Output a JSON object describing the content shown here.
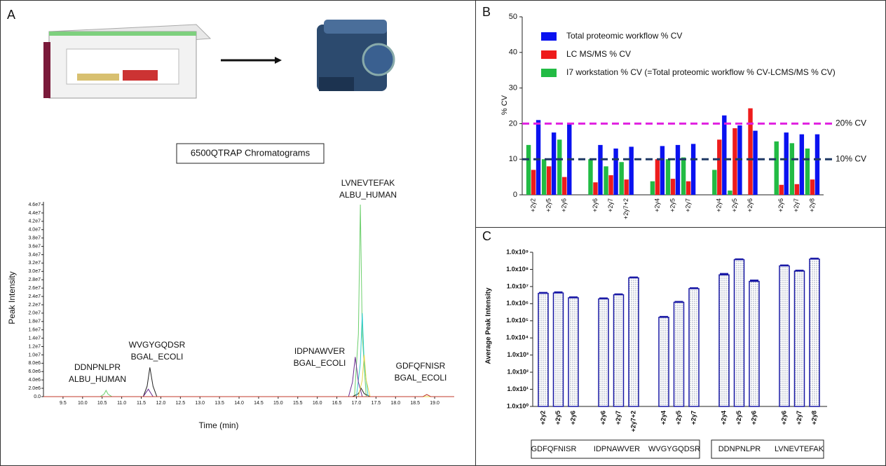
{
  "panel_labels": {
    "a": "A",
    "b": "B",
    "c": "C"
  },
  "chart_data": [
    {
      "type": "line",
      "title": "6500QTRAP Chromatograms",
      "x_label": "Time (min)",
      "y_label": "Peak Intensity",
      "xlim": [
        9.0,
        19.5
      ],
      "xticks": [
        9.5,
        {
          "value": 10,
          "label": "10.0"
        },
        10.5,
        {
          "value": 11,
          "label": "11.0"
        },
        11.5,
        {
          "value": 12,
          "label": "12.0"
        },
        12.5,
        {
          "value": 13,
          "label": "13.0"
        },
        13.5,
        {
          "value": 14,
          "label": "14.0"
        },
        14.5,
        {
          "value": 15,
          "label": "15.0"
        },
        15.5,
        {
          "value": 16,
          "label": "16.0"
        },
        16.5,
        {
          "value": 17,
          "label": "17.0"
        },
        17.5,
        {
          "value": 18,
          "label": "18.0"
        },
        18.5,
        {
          "value": 19,
          "label": "19.0"
        }
      ],
      "ylim": [
        0,
        46000000
      ],
      "yticks": [
        {
          "value": 0,
          "label": "0.0"
        },
        {
          "value": 2000000,
          "label": "2.0e6"
        },
        {
          "value": 4000000,
          "label": "4.0e6"
        },
        {
          "value": 6000000,
          "label": "6.0e6"
        },
        {
          "value": 8000000,
          "label": "8.0e6"
        },
        {
          "value": 10000000,
          "label": "1.0e7"
        },
        {
          "value": 12000000,
          "label": "1.2e7"
        },
        {
          "value": 14000000,
          "label": "1.4e7"
        },
        {
          "value": 16000000,
          "label": "1.6e7"
        },
        {
          "value": 18000000,
          "label": "1.8e7"
        },
        {
          "value": 20000000,
          "label": "2.0e7"
        },
        {
          "value": 22000000,
          "label": "2.2e7"
        },
        {
          "value": 24000000,
          "label": "2.4e7"
        },
        {
          "value": 26000000,
          "label": "2.6e7"
        },
        {
          "value": 28000000,
          "label": "2.8e7"
        },
        {
          "value": 30000000,
          "label": "3.0e7"
        },
        {
          "value": 32000000,
          "label": "3.2e7"
        },
        {
          "value": 34000000,
          "label": "3.4e7"
        },
        {
          "value": 36000000,
          "label": "3.6e7"
        },
        {
          "value": 38000000,
          "label": "3.8e7"
        },
        {
          "value": 40000000,
          "label": "4.0e7"
        },
        {
          "value": 42000000,
          "label": "4.2e7"
        },
        {
          "value": 44000000,
          "label": "4.4e7"
        },
        {
          "value": 46000000,
          "label": "4.6e7"
        }
      ],
      "series": [
        {
          "color": "#6ccf6c",
          "x": [
            9.0,
            10.45,
            10.55,
            10.6,
            10.65,
            10.75,
            16.95,
            17.05,
            17.1,
            17.15,
            17.25,
            19.5
          ],
          "values": [
            0,
            0,
            600000,
            1500000,
            600000,
            0,
            0,
            15000000,
            46000000,
            15000000,
            0,
            0
          ]
        },
        {
          "color": "#222222",
          "x": [
            9.0,
            11.55,
            11.65,
            11.72,
            11.8,
            11.9,
            16.9,
            17.05,
            17.12,
            17.2,
            17.35,
            19.5
          ],
          "values": [
            0,
            0,
            2500000,
            7000000,
            2500000,
            0,
            0,
            700000,
            2000000,
            700000,
            0,
            0
          ]
        },
        {
          "color": "#33cccc",
          "x": [
            9.0,
            17.0,
            17.1,
            17.15,
            17.2,
            17.3,
            19.5
          ],
          "values": [
            0,
            0,
            8000000,
            20000000,
            8000000,
            0,
            0
          ]
        },
        {
          "color": "#6a2c91",
          "x": [
            9.0,
            11.55,
            11.68,
            11.8,
            16.8,
            16.9,
            16.97,
            17.05,
            17.15,
            19.5
          ],
          "values": [
            0,
            0,
            1800000,
            0,
            0,
            3500000,
            9500000,
            3500000,
            0,
            0
          ]
        },
        {
          "color": "#e8d84a",
          "x": [
            9.0,
            17.05,
            17.15,
            17.2,
            17.25,
            17.35,
            19.5
          ],
          "values": [
            0,
            0,
            4000000,
            10000000,
            4000000,
            0,
            0
          ]
        },
        {
          "color": "#c0392b",
          "x": [
            9.0,
            18.7,
            18.8,
            18.9,
            19.5
          ],
          "values": [
            0,
            0,
            500000,
            0,
            0
          ]
        }
      ],
      "annotations": [
        [
          "DDNPNLPR",
          "ALBU_HUMAN"
        ],
        [
          "WVGYGQDSR",
          "BGAL_ECOLI"
        ],
        [
          "IDPNAWVER",
          "BGAL_ECOLI"
        ],
        [
          "LVNEVTEFAK",
          "ALBU_HUMAN"
        ],
        [
          "GDFQFNISR",
          "BGAL_ECOLI"
        ]
      ]
    },
    {
      "type": "bar",
      "y_label": "% CV",
      "ylim": [
        0,
        50
      ],
      "yticks": [
        0,
        10,
        20,
        30,
        40,
        50
      ],
      "categories": [
        "+2y2",
        "+2y5",
        "+2y6",
        null,
        "+2y6",
        "+2y7",
        "+2y7+2",
        null,
        "+2y4",
        "+2y5",
        "+2y7",
        null,
        "+2y4",
        "+2y5",
        "+2y6",
        null,
        "+2y6",
        "+2y7",
        "+2y8"
      ],
      "series": [
        {
          "name": "Total proteomic workflow % CV",
          "color": "#0a12f0",
          "values": [
            21,
            17.5,
            20,
            null,
            14,
            13,
            13.5,
            null,
            13.7,
            14,
            14.3,
            null,
            22.3,
            19.5,
            18,
            null,
            17.5,
            17,
            17
          ]
        },
        {
          "name": "LC MS/MS % CV",
          "color": "#ee1c1c",
          "values": [
            7,
            8,
            5,
            null,
            3.5,
            5.5,
            4.3,
            null,
            10,
            4.5,
            3.8,
            null,
            15.5,
            18.7,
            24.3,
            null,
            2.8,
            3,
            4.3
          ]
        },
        {
          "name": "I7 workstation  % CV (=Total proteomic workflow % CV-LCMS/MS % CV)",
          "color": "#22bb44",
          "values": [
            14,
            10,
            15.5,
            null,
            10,
            8,
            9.2,
            null,
            3.8,
            10,
            10.5,
            null,
            7,
            1.2,
            null,
            null,
            15,
            14.5,
            13
          ]
        }
      ],
      "reference_lines": [
        {
          "value": 20,
          "label": "20% CV",
          "color": "#e020e0"
        },
        {
          "value": 10,
          "label": "10% CV",
          "color": "#1f3864"
        }
      ]
    },
    {
      "type": "bar",
      "y_label": "Average Peak Intensity",
      "log_scale": true,
      "color": "#1a1aa6",
      "ylim": [
        1,
        1000000000
      ],
      "yticks": [
        {
          "value": 1,
          "label": "1.0x10⁰"
        },
        {
          "value": 10,
          "label": "1.0x10¹"
        },
        {
          "value": 100,
          "label": "1.0x10²"
        },
        {
          "value": 1000,
          "label": "1.0x10³"
        },
        {
          "value": 10000,
          "label": "1.0x10⁴"
        },
        {
          "value": 100000,
          "label": "1.0x10⁵"
        },
        {
          "value": 1000000,
          "label": "1.0x10⁶"
        },
        {
          "value": 10000000,
          "label": "1.0x10⁷"
        },
        {
          "value": 100000000,
          "label": "1.0x10⁸"
        },
        {
          "value": 1000000000,
          "label": "1.0x10⁹"
        }
      ],
      "categories": [
        "+2y2",
        "+2y5",
        "+2y6",
        null,
        "+2y6",
        "+2y7",
        "+2y7+2",
        null,
        "+2y4",
        "+2y5",
        "+2y7",
        null,
        "+2y4",
        "+2y5",
        "+2y6",
        null,
        "+2y6",
        "+2y7",
        "+2y8"
      ],
      "values": [
        4000000,
        4200000,
        2200000,
        null,
        1900000,
        3300000,
        32000000,
        null,
        160000,
        1200000,
        7500000,
        null,
        48000000,
        370000000,
        20000000,
        null,
        160000000,
        80000000,
        400000000
      ],
      "errors": [
        400000,
        500000,
        200000,
        null,
        200000,
        300000,
        3000000,
        null,
        15000,
        100000,
        700000,
        null,
        8000000,
        30000000,
        3000000,
        null,
        15000000,
        7000000,
        40000000
      ],
      "groups": [
        "GDFQFNISR",
        "IDPNAWVER",
        "WVGYGQDSR",
        "DDNPNLPR",
        "LVNEVTEFAK"
      ]
    }
  ]
}
